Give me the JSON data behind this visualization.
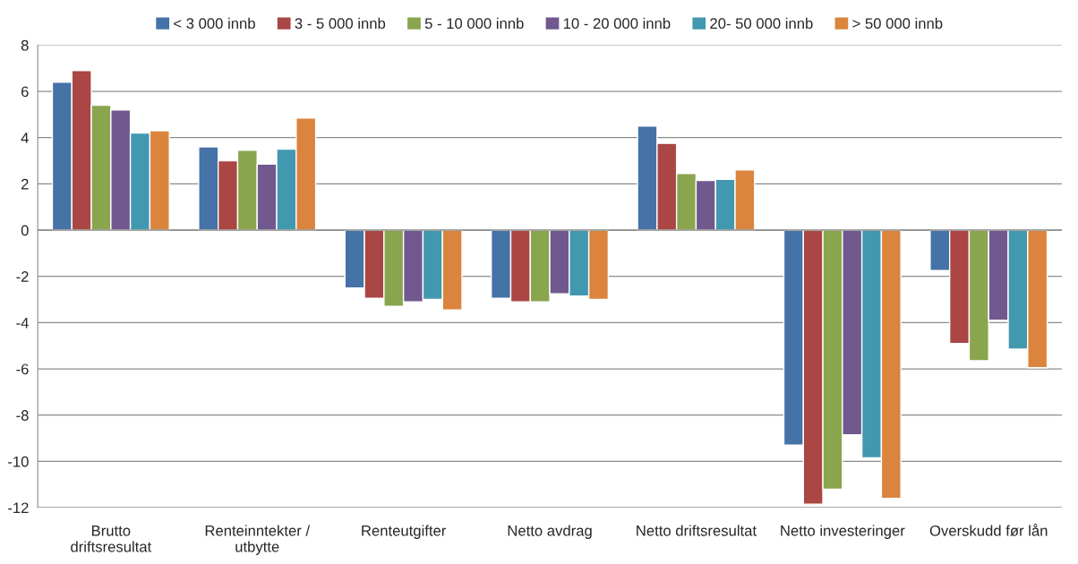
{
  "chart_data": {
    "type": "bar",
    "categories": [
      "Brutto\ndriftsresultat",
      "Renteinntekter /\nutbytte",
      "Renteutgifter",
      "Netto avdrag",
      "Netto driftsresultat",
      "Netto investeringer",
      "Overskudd før lån"
    ],
    "series": [
      {
        "name": "< 3 000 innb",
        "color": "#4572a7",
        "values": [
          6.4,
          3.6,
          -2.5,
          -2.95,
          4.5,
          -9.3,
          -1.75
        ]
      },
      {
        "name": "3 - 5 000 innb",
        "color": "#aa4643",
        "values": [
          6.9,
          3.0,
          -2.95,
          -3.1,
          3.75,
          -11.85,
          -4.9
        ]
      },
      {
        "name": "5 - 10 000 innb",
        "color": "#89a54e",
        "values": [
          5.4,
          3.45,
          -3.3,
          -3.1,
          2.45,
          -11.2,
          -5.65
        ]
      },
      {
        "name": "10 - 20 000 innb",
        "color": "#71588f",
        "values": [
          5.2,
          2.85,
          -3.1,
          -2.75,
          2.15,
          -8.85,
          -3.9
        ]
      },
      {
        "name": "20- 50 000 innb",
        "color": "#4198af",
        "values": [
          4.2,
          3.5,
          -3.0,
          -2.85,
          2.2,
          -9.85,
          -5.15
        ]
      },
      {
        "name": "> 50 000 innb",
        "color": "#db843d",
        "values": [
          4.3,
          4.85,
          -3.45,
          -3.0,
          2.6,
          -11.6,
          -5.95
        ]
      }
    ],
    "ylim": [
      -12,
      8
    ],
    "yticks": [
      -12,
      -10,
      -8,
      -6,
      -4,
      -2,
      0,
      2,
      4,
      6,
      8
    ],
    "grid": "y",
    "legend": "top"
  }
}
